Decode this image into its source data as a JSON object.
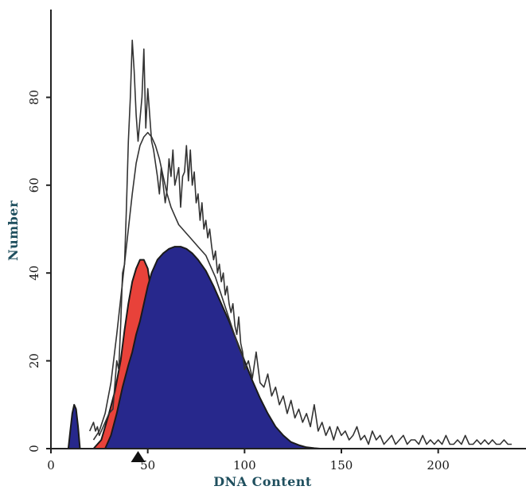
{
  "chart_data": {
    "type": "area",
    "title": "",
    "xlabel": "DNA Content",
    "ylabel": "Number",
    "xlim": [
      0,
      240
    ],
    "ylim": [
      0,
      100
    ],
    "x_ticks": [
      0,
      50,
      100,
      150,
      200
    ],
    "x_tick_labels": [
      "0",
      "50",
      "100",
      "150",
      "200"
    ],
    "y_ticks": [
      0,
      20,
      40,
      60,
      80
    ],
    "y_tick_labels": [
      "0",
      "20",
      "40",
      "60",
      "80"
    ],
    "grid": false,
    "marker_x": 45,
    "colors": {
      "blue_fill": "#27288c",
      "red_fill": "#e8423a",
      "line": "#333333"
    },
    "series": [
      {
        "kind": "filled",
        "color": "blue_fill",
        "x": [
          9,
          10,
          11,
          12,
          13,
          14,
          15
        ],
        "y": [
          0,
          4,
          8,
          10,
          9,
          5,
          0
        ]
      },
      {
        "kind": "filled",
        "color": "red_fill",
        "x": [
          22,
          26,
          30,
          33,
          36,
          38,
          40,
          42,
          44,
          45,
          46,
          48,
          50,
          52,
          54,
          55
        ],
        "y": [
          0,
          2,
          8,
          13,
          20,
          27,
          33,
          38,
          41,
          42,
          43,
          43,
          41,
          35,
          22,
          0
        ]
      },
      {
        "kind": "filled",
        "color": "blue_fill",
        "x": [
          28,
          31,
          34,
          37,
          40,
          42,
          44,
          46,
          48,
          50,
          52,
          55,
          58,
          61,
          64,
          67,
          70,
          73,
          76,
          80,
          84,
          88,
          92,
          96,
          100,
          104,
          108,
          112,
          116,
          120,
          124,
          128,
          132,
          136,
          139
        ],
        "y": [
          0,
          3,
          8,
          14,
          19,
          22,
          26,
          29,
          33,
          37,
          40,
          43,
          44.5,
          45.5,
          46,
          46,
          45.5,
          44.5,
          43,
          40.5,
          37,
          33,
          29,
          24.5,
          20,
          15.5,
          11.5,
          8,
          5,
          3,
          1.5,
          0.8,
          0.3,
          0.1,
          0
        ]
      },
      {
        "kind": "line",
        "color": "line",
        "x": [
          22,
          25,
          28,
          31,
          34,
          37,
          40,
          42,
          44,
          46,
          48,
          50,
          52,
          54,
          56,
          58,
          60,
          62,
          64,
          66,
          68,
          70,
          72,
          74,
          76,
          78,
          80,
          82,
          85,
          88,
          91,
          94,
          97,
          100
        ],
        "y": [
          2,
          4,
          8,
          15,
          26,
          38,
          50,
          58,
          65,
          69,
          71,
          72,
          71,
          69,
          66,
          62,
          58,
          55,
          53,
          51,
          50,
          49,
          48,
          47,
          46,
          45,
          44,
          42,
          39,
          35,
          31,
          27,
          23,
          20
        ]
      },
      {
        "kind": "line",
        "color": "line",
        "x": [
          20,
          21,
          22,
          23,
          24,
          25,
          26,
          27,
          28,
          30,
          32,
          34,
          35,
          36,
          37,
          38,
          39,
          40,
          41,
          42,
          43,
          44,
          45,
          46,
          47,
          48,
          49,
          50,
          51,
          52,
          53,
          54,
          55,
          56,
          57,
          58,
          59,
          60,
          61,
          62,
          63,
          64,
          65,
          66,
          67,
          68,
          69,
          70,
          71,
          72,
          73,
          74,
          75,
          76,
          77,
          78,
          79,
          80,
          81,
          82,
          83,
          84,
          85,
          86,
          87,
          88,
          89,
          90,
          91,
          92,
          93,
          94,
          95,
          96,
          97,
          98,
          99,
          100,
          102,
          104,
          106,
          108,
          110,
          112,
          114,
          116,
          118,
          120,
          122,
          124,
          126,
          128,
          130,
          132,
          134,
          136,
          138,
          140,
          142,
          144,
          146,
          148,
          150,
          152,
          154,
          156,
          158,
          160,
          162,
          164,
          166,
          168,
          170,
          172,
          174,
          176,
          178,
          180,
          182,
          184,
          186,
          188,
          190,
          192,
          194,
          196,
          198,
          200,
          202,
          204,
          206,
          208,
          210,
          212,
          214,
          216,
          218,
          220,
          222,
          224,
          226,
          228,
          230,
          232,
          234,
          236,
          238
        ],
        "y": [
          4,
          5,
          6,
          4,
          5,
          3,
          4,
          5,
          6,
          8,
          9,
          20,
          18,
          28,
          40,
          42,
          55,
          70,
          80,
          93,
          86,
          76,
          70,
          75,
          80,
          91,
          73,
          82,
          76,
          70,
          68,
          65,
          62,
          58,
          64,
          60,
          56,
          59,
          66,
          62,
          68,
          60,
          62,
          64,
          55,
          62,
          63,
          69,
          61,
          68,
          60,
          63,
          56,
          58,
          52,
          56,
          50,
          52,
          48,
          50,
          46,
          43,
          45,
          40,
          42,
          38,
          40,
          35,
          37,
          33,
          31,
          33,
          28,
          26,
          30,
          24,
          22,
          18,
          20,
          16,
          22,
          15,
          14,
          17,
          12,
          14,
          10,
          12,
          8,
          11,
          7,
          9,
          6,
          8,
          5,
          10,
          4,
          6,
          3,
          5,
          2,
          5,
          3,
          4,
          2,
          3,
          5,
          2,
          3,
          1,
          4,
          2,
          3,
          1,
          2,
          3,
          1,
          2,
          3,
          1,
          2,
          2,
          1,
          3,
          1,
          2,
          1,
          2,
          1,
          3,
          1,
          1,
          2,
          1,
          3,
          1,
          1,
          2,
          1,
          2,
          1,
          2,
          1,
          1,
          2,
          1,
          1
        ]
      }
    ]
  }
}
